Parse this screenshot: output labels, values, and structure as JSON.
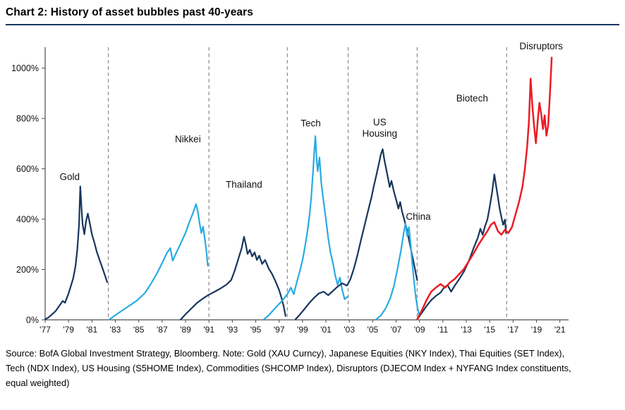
{
  "source": {
    "lines": [
      "Source:  BofA Global Investment Strategy, Bloomberg. Note: Gold (XAU Curncy),  Japanese Equities (NKY Index), Thai Equities (SET Index),",
      "Tech (NDX Index), US Housing  (S5HOME  Index), Commodities (SHCOMP Index), Disruptors (DJECOM Index  + NYFANG Index constituents,",
      "equal weighted)"
    ]
  },
  "chart_data": {
    "type": "line",
    "title": "Chart 2: History of asset bubbles past 40-years",
    "xlabel": "",
    "ylabel": "",
    "legend": "none (labels annotated next to each bubble)",
    "x_range": [
      1977,
      2021.5
    ],
    "y_range": [
      0,
      1100
    ],
    "grid": "vertical dashed era dividers only",
    "colors": {
      "navy": "#17365d",
      "cyan": "#29abe2",
      "red": "#ed1c24",
      "divider": "#8c8c8c",
      "axis": "#4d4d4d",
      "text": "#111111"
    },
    "y_ticks": [
      {
        "value": 0,
        "label": "0%"
      },
      {
        "value": 200,
        "label": "200%"
      },
      {
        "value": 400,
        "label": "400%"
      },
      {
        "value": 600,
        "label": "600%"
      },
      {
        "value": 800,
        "label": "800%"
      },
      {
        "value": 1000,
        "label": "1000%"
      }
    ],
    "x_ticks": [
      {
        "value": 1977,
        "label": "'77"
      },
      {
        "value": 1979,
        "label": "'79"
      },
      {
        "value": 1981,
        "label": "'81"
      },
      {
        "value": 1983,
        "label": "'83"
      },
      {
        "value": 1985,
        "label": "'85"
      },
      {
        "value": 1987,
        "label": "'87"
      },
      {
        "value": 1989,
        "label": "'89"
      },
      {
        "value": 1991,
        "label": "'91"
      },
      {
        "value": 1993,
        "label": "'93"
      },
      {
        "value": 1995,
        "label": "'95"
      },
      {
        "value": 1997,
        "label": "'97"
      },
      {
        "value": 1999,
        "label": "'99"
      },
      {
        "value": 2001,
        "label": "'01"
      },
      {
        "value": 2003,
        "label": "'03"
      },
      {
        "value": 2005,
        "label": "'05"
      },
      {
        "value": 2007,
        "label": "'07"
      },
      {
        "value": 2009,
        "label": "'09"
      },
      {
        "value": 2011,
        "label": "'11"
      },
      {
        "value": 2013,
        "label": "'13"
      },
      {
        "value": 2015,
        "label": "'15"
      },
      {
        "value": 2017,
        "label": "'17"
      },
      {
        "value": 2019,
        "label": "'19"
      },
      {
        "value": 2021,
        "label": "'21"
      }
    ],
    "divider_years": [
      1982.4,
      1991.0,
      1997.7,
      2002.9,
      2008.8,
      2016.45
    ],
    "annotations": [
      {
        "text": "Gold",
        "year": 1979.1,
        "pct": 555
      },
      {
        "text": "Nikkei",
        "year": 1989.2,
        "pct": 705
      },
      {
        "text": "Thailand",
        "year": 1994.0,
        "pct": 525
      },
      {
        "text": "Tech",
        "year": 1999.7,
        "pct": 768
      },
      {
        "text": "US\nHousing",
        "year": 2005.6,
        "pct": 772
      },
      {
        "text": "China",
        "year": 2008.9,
        "pct": 398
      },
      {
        "text": "Biotech",
        "year": 2013.5,
        "pct": 868
      },
      {
        "text": "Disruptors",
        "year": 2019.4,
        "pct": 1075
      }
    ],
    "series": [
      {
        "name": "Gold",
        "color": "#17365d",
        "width": 2.2,
        "points": [
          [
            1977.0,
            2
          ],
          [
            1977.3,
            10
          ],
          [
            1977.6,
            22
          ],
          [
            1977.9,
            35
          ],
          [
            1978.2,
            55
          ],
          [
            1978.5,
            75
          ],
          [
            1978.7,
            68
          ],
          [
            1979.0,
            105
          ],
          [
            1979.2,
            135
          ],
          [
            1979.4,
            165
          ],
          [
            1979.6,
            215
          ],
          [
            1979.75,
            280
          ],
          [
            1979.9,
            380
          ],
          [
            1980.0,
            530
          ],
          [
            1980.1,
            450
          ],
          [
            1980.2,
            380
          ],
          [
            1980.35,
            340
          ],
          [
            1980.5,
            392
          ],
          [
            1980.65,
            422
          ],
          [
            1980.8,
            388
          ],
          [
            1981.0,
            340
          ],
          [
            1981.2,
            308
          ],
          [
            1981.4,
            272
          ],
          [
            1981.6,
            245
          ],
          [
            1981.9,
            205
          ],
          [
            1982.1,
            178
          ],
          [
            1982.3,
            150
          ]
        ]
      },
      {
        "name": "Nikkei",
        "color": "#29abe2",
        "width": 2.2,
        "points": [
          [
            1982.5,
            2
          ],
          [
            1983.2,
            25
          ],
          [
            1984.0,
            50
          ],
          [
            1984.8,
            75
          ],
          [
            1985.5,
            105
          ],
          [
            1986.0,
            140
          ],
          [
            1986.5,
            180
          ],
          [
            1987.0,
            225
          ],
          [
            1987.4,
            265
          ],
          [
            1987.7,
            285
          ],
          [
            1987.9,
            235
          ],
          [
            1988.2,
            265
          ],
          [
            1988.6,
            305
          ],
          [
            1989.0,
            345
          ],
          [
            1989.3,
            385
          ],
          [
            1989.6,
            420
          ],
          [
            1989.9,
            460
          ],
          [
            1990.05,
            430
          ],
          [
            1990.2,
            385
          ],
          [
            1990.35,
            345
          ],
          [
            1990.5,
            370
          ],
          [
            1990.65,
            320
          ],
          [
            1990.8,
            265
          ],
          [
            1990.9,
            215
          ]
        ]
      },
      {
        "name": "Thailand",
        "color": "#17365d",
        "width": 2.2,
        "points": [
          [
            1988.6,
            2
          ],
          [
            1989.0,
            22
          ],
          [
            1989.5,
            45
          ],
          [
            1990.0,
            68
          ],
          [
            1990.5,
            85
          ],
          [
            1991.0,
            100
          ],
          [
            1991.5,
            112
          ],
          [
            1992.0,
            125
          ],
          [
            1992.5,
            140
          ],
          [
            1992.9,
            158
          ],
          [
            1993.2,
            195
          ],
          [
            1993.5,
            240
          ],
          [
            1993.8,
            285
          ],
          [
            1994.0,
            330
          ],
          [
            1994.15,
            300
          ],
          [
            1994.3,
            262
          ],
          [
            1994.5,
            278
          ],
          [
            1994.7,
            252
          ],
          [
            1994.9,
            268
          ],
          [
            1995.1,
            238
          ],
          [
            1995.3,
            255
          ],
          [
            1995.55,
            222
          ],
          [
            1995.8,
            238
          ],
          [
            1996.1,
            205
          ],
          [
            1996.4,
            182
          ],
          [
            1996.7,
            152
          ],
          [
            1997.0,
            118
          ],
          [
            1997.2,
            88
          ],
          [
            1997.4,
            52
          ],
          [
            1997.55,
            15
          ]
        ]
      },
      {
        "name": "Tech",
        "color": "#29abe2",
        "width": 2.2,
        "points": [
          [
            1995.7,
            2
          ],
          [
            1996.1,
            18
          ],
          [
            1996.5,
            38
          ],
          [
            1996.9,
            58
          ],
          [
            1997.3,
            78
          ],
          [
            1997.7,
            102
          ],
          [
            1998.0,
            128
          ],
          [
            1998.25,
            102
          ],
          [
            1998.5,
            148
          ],
          [
            1998.8,
            198
          ],
          [
            1999.0,
            238
          ],
          [
            1999.2,
            288
          ],
          [
            1999.4,
            345
          ],
          [
            1999.6,
            415
          ],
          [
            1999.75,
            490
          ],
          [
            1999.9,
            590
          ],
          [
            2000.0,
            665
          ],
          [
            2000.1,
            730
          ],
          [
            2000.2,
            640
          ],
          [
            2000.3,
            590
          ],
          [
            2000.45,
            645
          ],
          [
            2000.6,
            545
          ],
          [
            2000.8,
            470
          ],
          [
            2001.0,
            400
          ],
          [
            2001.2,
            325
          ],
          [
            2001.4,
            265
          ],
          [
            2001.6,
            225
          ],
          [
            2001.8,
            175
          ],
          [
            2002.0,
            140
          ],
          [
            2002.2,
            168
          ],
          [
            2002.4,
            118
          ],
          [
            2002.6,
            82
          ],
          [
            2002.85,
            92
          ]
        ]
      },
      {
        "name": "US Housing",
        "color": "#17365d",
        "width": 2.2,
        "points": [
          [
            1998.4,
            2
          ],
          [
            1998.8,
            22
          ],
          [
            1999.2,
            45
          ],
          [
            1999.6,
            68
          ],
          [
            2000.0,
            88
          ],
          [
            2000.4,
            105
          ],
          [
            2000.8,
            112
          ],
          [
            2001.2,
            98
          ],
          [
            2001.6,
            115
          ],
          [
            2002.0,
            132
          ],
          [
            2002.4,
            145
          ],
          [
            2002.8,
            136
          ],
          [
            2003.1,
            162
          ],
          [
            2003.4,
            205
          ],
          [
            2003.7,
            258
          ],
          [
            2004.0,
            318
          ],
          [
            2004.3,
            375
          ],
          [
            2004.6,
            432
          ],
          [
            2004.9,
            488
          ],
          [
            2005.1,
            532
          ],
          [
            2005.3,
            572
          ],
          [
            2005.5,
            615
          ],
          [
            2005.7,
            658
          ],
          [
            2005.85,
            678
          ],
          [
            2006.0,
            635
          ],
          [
            2006.15,
            600
          ],
          [
            2006.3,
            565
          ],
          [
            2006.45,
            528
          ],
          [
            2006.6,
            552
          ],
          [
            2006.8,
            512
          ],
          [
            2007.0,
            478
          ],
          [
            2007.2,
            442
          ],
          [
            2007.35,
            468
          ],
          [
            2007.5,
            432
          ],
          [
            2007.7,
            398
          ],
          [
            2007.9,
            362
          ],
          [
            2008.1,
            318
          ],
          [
            2008.3,
            272
          ],
          [
            2008.5,
            228
          ],
          [
            2008.65,
            192
          ],
          [
            2008.8,
            158
          ]
        ]
      },
      {
        "name": "China",
        "color": "#29abe2",
        "width": 2.2,
        "points": [
          [
            2005.3,
            2
          ],
          [
            2005.7,
            18
          ],
          [
            2006.1,
            45
          ],
          [
            2006.5,
            85
          ],
          [
            2006.8,
            132
          ],
          [
            2007.1,
            198
          ],
          [
            2007.4,
            272
          ],
          [
            2007.65,
            345
          ],
          [
            2007.8,
            382
          ],
          [
            2007.95,
            332
          ],
          [
            2008.1,
            368
          ],
          [
            2008.25,
            295
          ],
          [
            2008.4,
            215
          ],
          [
            2008.55,
            145
          ],
          [
            2008.7,
            85
          ],
          [
            2008.85,
            42
          ],
          [
            2009.0,
            12
          ]
        ]
      },
      {
        "name": "Biotech",
        "color": "#17365d",
        "width": 2.2,
        "points": [
          [
            2008.8,
            2
          ],
          [
            2009.2,
            28
          ],
          [
            2009.6,
            55
          ],
          [
            2010.0,
            78
          ],
          [
            2010.4,
            95
          ],
          [
            2010.8,
            108
          ],
          [
            2011.1,
            128
          ],
          [
            2011.4,
            138
          ],
          [
            2011.7,
            112
          ],
          [
            2012.0,
            135
          ],
          [
            2012.4,
            162
          ],
          [
            2012.8,
            192
          ],
          [
            2013.2,
            232
          ],
          [
            2013.6,
            282
          ],
          [
            2014.0,
            328
          ],
          [
            2014.2,
            362
          ],
          [
            2014.4,
            338
          ],
          [
            2014.6,
            372
          ],
          [
            2014.8,
            398
          ],
          [
            2015.0,
            448
          ],
          [
            2015.2,
            505
          ],
          [
            2015.4,
            578
          ],
          [
            2015.55,
            532
          ],
          [
            2015.7,
            488
          ],
          [
            2015.85,
            442
          ],
          [
            2016.0,
            408
          ],
          [
            2016.15,
            378
          ],
          [
            2016.3,
            398
          ],
          [
            2016.4,
            345
          ]
        ]
      },
      {
        "name": "Disruptors",
        "color": "#ed1c24",
        "width": 2.5,
        "points": [
          [
            2008.8,
            2
          ],
          [
            2009.2,
            38
          ],
          [
            2009.6,
            78
          ],
          [
            2010.0,
            112
          ],
          [
            2010.4,
            128
          ],
          [
            2010.8,
            142
          ],
          [
            2011.2,
            128
          ],
          [
            2011.6,
            148
          ],
          [
            2012.0,
            162
          ],
          [
            2012.4,
            182
          ],
          [
            2012.8,
            202
          ],
          [
            2013.2,
            232
          ],
          [
            2013.6,
            262
          ],
          [
            2014.0,
            295
          ],
          [
            2014.4,
            325
          ],
          [
            2014.8,
            352
          ],
          [
            2015.1,
            378
          ],
          [
            2015.4,
            388
          ],
          [
            2015.7,
            352
          ],
          [
            2016.0,
            338
          ],
          [
            2016.3,
            358
          ],
          [
            2016.6,
            345
          ],
          [
            2016.9,
            368
          ],
          [
            2017.2,
            418
          ],
          [
            2017.5,
            468
          ],
          [
            2017.8,
            528
          ],
          [
            2018.0,
            598
          ],
          [
            2018.2,
            688
          ],
          [
            2018.35,
            788
          ],
          [
            2018.5,
            958
          ],
          [
            2018.65,
            848
          ],
          [
            2018.8,
            768
          ],
          [
            2018.95,
            702
          ],
          [
            2019.1,
            788
          ],
          [
            2019.25,
            862
          ],
          [
            2019.4,
            818
          ],
          [
            2019.55,
            758
          ],
          [
            2019.7,
            812
          ],
          [
            2019.85,
            732
          ],
          [
            2020.0,
            772
          ],
          [
            2020.15,
            898
          ],
          [
            2020.3,
            1042
          ]
        ]
      }
    ]
  }
}
